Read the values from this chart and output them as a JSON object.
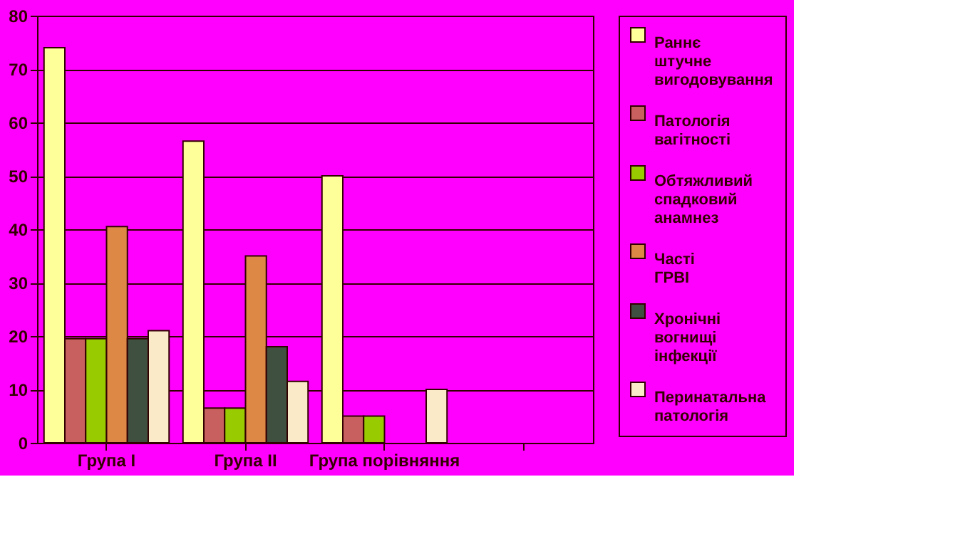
{
  "chart_data": {
    "type": "bar",
    "categories": [
      "Група I",
      "Група II",
      "Група порівняння",
      null
    ],
    "series": [
      {
        "name": "Раннє штучне вигодовування",
        "color": "#ffff99",
        "values": [
          74,
          56.5,
          50,
          null
        ]
      },
      {
        "name": "Патологія вагітності",
        "color": "#c86060",
        "values": [
          19.5,
          6.5,
          5,
          null
        ]
      },
      {
        "name": "Обтяжливий спадковий анамнез",
        "color": "#99cc00",
        "values": [
          19.5,
          6.5,
          5,
          null
        ]
      },
      {
        "name": "Часті ГРВІ",
        "color": "#dd8844",
        "values": [
          40.5,
          35,
          0,
          null
        ]
      },
      {
        "name": "Хронічні вогнищі інфекції",
        "color": "#3f5040",
        "values": [
          19.5,
          18,
          0,
          null
        ]
      },
      {
        "name": "Перинатальна патологія",
        "color": "#fbeac8",
        "values": [
          21,
          11.5,
          10,
          null
        ]
      }
    ],
    "ylim": [
      0,
      80
    ],
    "yticks": [
      0,
      10,
      20,
      30,
      40,
      50,
      60,
      70,
      80
    ],
    "grid": "y",
    "legend": "right"
  }
}
